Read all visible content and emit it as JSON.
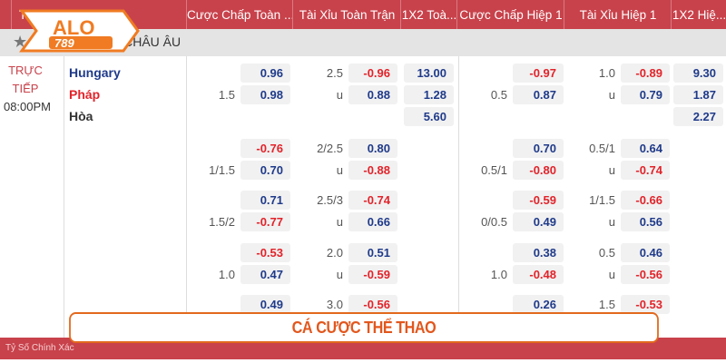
{
  "header": {
    "cols": [
      "Ti",
      "Cược Chấp Toàn ...",
      "Tài Xỉu Toàn Trận",
      "1X2 Toà...",
      "Cược Chấp Hiệp 1",
      "Tài Xỉu Hiệp 1",
      "1X2 Hiệ..."
    ]
  },
  "logo": {
    "text": "ALO 789"
  },
  "league": "CH CHÂU ÂU",
  "match": {
    "status1": "TRỰC",
    "status2": "TIẾP",
    "time": "08:00PM",
    "home": "Hungary",
    "away": "Pháp",
    "draw": "Hòa"
  },
  "colors": {
    "header": "#c8424b",
    "positive": "#1f3a8a",
    "negative": "#e2232a",
    "banner": "#e2571d"
  },
  "groups": [
    {
      "hdp": [
        [
          "",
          "0.96"
        ],
        [
          "1.5",
          "0.98"
        ]
      ],
      "ou": [
        [
          "2.5",
          "-0.96"
        ],
        [
          "u",
          "0.88"
        ]
      ],
      "x12": [
        "13.00",
        "1.28",
        "5.60"
      ],
      "hhdp": [
        [
          "",
          "-0.97"
        ],
        [
          "0.5",
          "0.87"
        ]
      ],
      "hou": [
        [
          "1.0",
          "-0.89"
        ],
        [
          "u",
          "0.79"
        ]
      ],
      "hx12": [
        "9.30",
        "1.87",
        "2.27"
      ]
    },
    {
      "hdp": [
        [
          "",
          "-0.76"
        ],
        [
          "1/1.5",
          "0.70"
        ]
      ],
      "ou": [
        [
          "2/2.5",
          "0.80"
        ],
        [
          "u",
          "-0.88"
        ]
      ],
      "hhdp": [
        [
          "",
          "0.70"
        ],
        [
          "0.5/1",
          "-0.80"
        ]
      ],
      "hou": [
        [
          "0.5/1",
          "0.64"
        ],
        [
          "u",
          "-0.74"
        ]
      ]
    },
    {
      "hdp": [
        [
          "",
          "0.71"
        ],
        [
          "1.5/2",
          "-0.77"
        ]
      ],
      "ou": [
        [
          "2.5/3",
          "-0.74"
        ],
        [
          "u",
          "0.66"
        ]
      ],
      "hhdp": [
        [
          "",
          "-0.59"
        ],
        [
          "0/0.5",
          "0.49"
        ]
      ],
      "hou": [
        [
          "1/1.5",
          "-0.66"
        ],
        [
          "u",
          "0.56"
        ]
      ]
    },
    {
      "hdp": [
        [
          "",
          "-0.53"
        ],
        [
          "1.0",
          "0.47"
        ]
      ],
      "ou": [
        [
          "2.0",
          "0.51"
        ],
        [
          "u",
          "-0.59"
        ]
      ],
      "hhdp": [
        [
          "",
          "0.38"
        ],
        [
          "1.0",
          "-0.48"
        ]
      ],
      "hou": [
        [
          "0.5",
          "0.46"
        ],
        [
          "u",
          "-0.56"
        ]
      ]
    },
    {
      "hdp": [
        [
          "",
          "0.49"
        ]
      ],
      "ou": [
        [
          "3.0",
          "-0.56"
        ]
      ],
      "hhdp": [
        [
          "",
          "0.26"
        ]
      ],
      "hou": [
        [
          "1.5",
          "-0.53"
        ]
      ]
    }
  ],
  "banner": "CÁ CƯỢC THỂ THAO",
  "footer": "Tỷ Số Chính Xác"
}
